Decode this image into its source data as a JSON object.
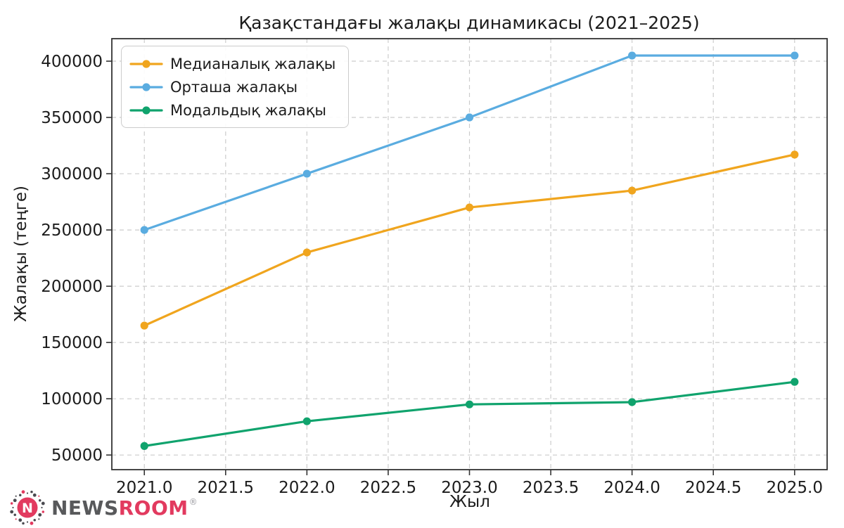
{
  "chart_data": {
    "type": "line",
    "title": "Қазақстандағы жалақы динамикасы (2021–2025)",
    "xlabel": "Жыл",
    "ylabel": "Жалақы (теңге)",
    "x": [
      2021,
      2022,
      2023,
      2024,
      2025
    ],
    "series": [
      {
        "name": "Медианалық жалақы",
        "color": "#F0A51E",
        "values": [
          165000,
          230000,
          270000,
          285000,
          317000
        ]
      },
      {
        "name": "Орташа жалақы",
        "color": "#5AACE0",
        "values": [
          250000,
          300000,
          350000,
          405000,
          405000
        ]
      },
      {
        "name": "Модальдық жалақы",
        "color": "#10A36D",
        "values": [
          58000,
          80000,
          95000,
          97000,
          115000
        ]
      }
    ],
    "xlim": [
      2020.8,
      2025.2
    ],
    "ylim": [
      37000,
      420000
    ],
    "x_ticks": [
      2021.0,
      2021.5,
      2022.0,
      2022.5,
      2023.0,
      2023.5,
      2024.0,
      2024.5,
      2025.0
    ],
    "x_tick_labels": [
      "2021.0",
      "2021.5",
      "2022.0",
      "2022.5",
      "2023.0",
      "2023.5",
      "2024.0",
      "2024.5",
      "2025.0"
    ],
    "y_ticks": [
      50000,
      100000,
      150000,
      200000,
      250000,
      300000,
      350000,
      400000
    ],
    "y_tick_labels": [
      "50000",
      "100000",
      "150000",
      "200000",
      "250000",
      "300000",
      "350000",
      "400000"
    ],
    "grid": "dashed both axes",
    "legend_position": "upper-left"
  },
  "branding": {
    "name_part1": "NEWS",
    "name_part2": "ROOM",
    "registered_mark": "®",
    "icon_letter": "N",
    "accent_color": "#E23A5F",
    "gray_color": "#58595B"
  }
}
